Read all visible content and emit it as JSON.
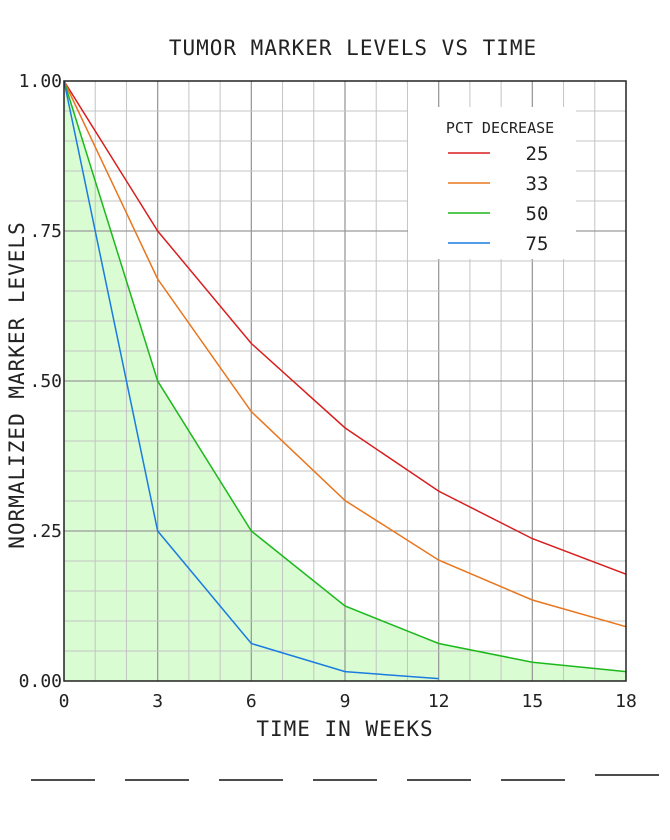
{
  "chart_data": {
    "type": "line",
    "title": "TUMOR MARKER LEVELS VS TIME",
    "xlabel": "TIME IN WEEKS",
    "ylabel": "NORMALIZED MARKER  LEVELS",
    "xlim": [
      0,
      18
    ],
    "ylim": [
      0,
      1
    ],
    "x_ticks": [
      0,
      3,
      6,
      9,
      12,
      15,
      18
    ],
    "x_tick_labels": [
      "0",
      "3",
      "6",
      "9",
      "12",
      "15",
      "18"
    ],
    "y_ticks": [
      0,
      0.25,
      0.5,
      0.75,
      1.0
    ],
    "y_tick_labels": [
      "0.00",
      ".25",
      ".50",
      ".75",
      "1.00"
    ],
    "grid": true,
    "legend": {
      "title": "PCT DECREASE",
      "placement": "top-right"
    },
    "x": [
      0,
      3,
      6,
      9,
      12,
      15,
      18
    ],
    "series": [
      {
        "name": "25",
        "color": "#d81e1e",
        "values": [
          1.0,
          0.75,
          0.5625,
          0.4219,
          0.3164,
          0.2373,
          0.178
        ]
      },
      {
        "name": "33",
        "color": "#e8761e",
        "values": [
          1.0,
          0.67,
          0.4489,
          0.3008,
          0.2015,
          0.135,
          0.0905
        ]
      },
      {
        "name": "50",
        "color": "#1cb81c",
        "values": [
          1.0,
          0.5,
          0.25,
          0.125,
          0.0625,
          0.0313,
          0.0156
        ],
        "fill": "#d9fcd3"
      },
      {
        "name": "75",
        "color": "#1a7be0",
        "values": [
          1.0,
          0.25,
          0.0625,
          0.0156,
          0.0039,
          null,
          null
        ]
      }
    ]
  },
  "answer_blanks": [
    "",
    "",
    "",
    "",
    "",
    "",
    ""
  ]
}
